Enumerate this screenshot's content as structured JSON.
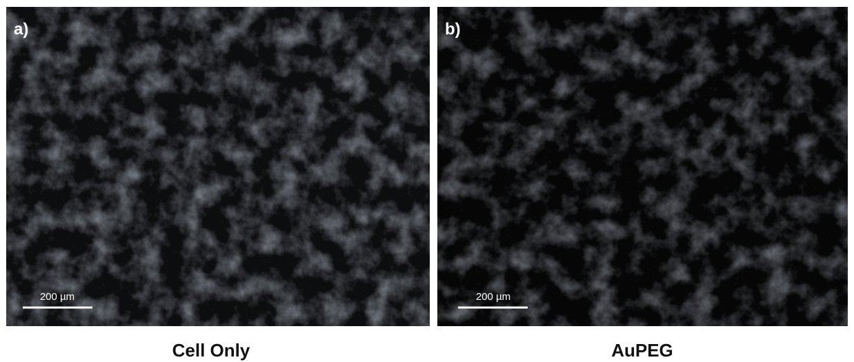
{
  "panels": [
    {
      "label": "a)",
      "scale_bar": "200 µm",
      "caption": "Cell Only"
    },
    {
      "label": "b)",
      "scale_bar": "200 µm",
      "caption": "AuPEG"
    }
  ]
}
